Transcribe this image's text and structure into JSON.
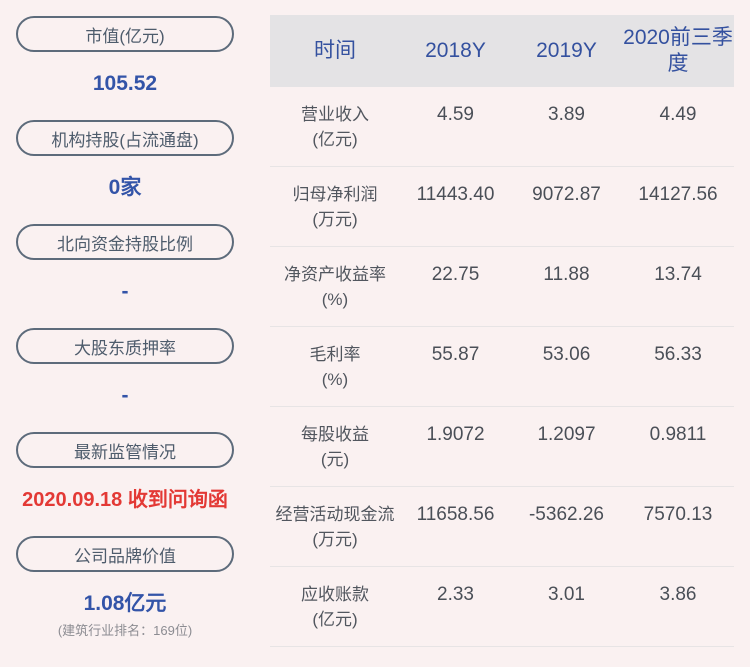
{
  "accent_colors": {
    "background": "#faf1f1",
    "pill_border": "#5d6b7b",
    "value_blue": "#3354a8",
    "alert_red": "#e33935",
    "header_bg": "#e4e3e5",
    "header_text": "#34519f"
  },
  "sidebar": {
    "stats": [
      {
        "label": "市值(亿元)",
        "value": "105.52"
      },
      {
        "label": "机构持股(占流通盘)",
        "value": "0家"
      },
      {
        "label": "北向资金持股比例",
        "value": "-"
      },
      {
        "label": "大股东质押率",
        "value": "-"
      },
      {
        "label": "最新监管情况",
        "value": "2020.09.18 收到问询函"
      },
      {
        "label": "公司品牌价值",
        "value": "1.08亿元",
        "subvalue": "(建筑行业排名：169位)"
      }
    ]
  },
  "table": {
    "columns": [
      "时间",
      "2018Y",
      "2019Y",
      "2020前三季度"
    ],
    "rows": [
      {
        "name": "营业收入",
        "unit": "(亿元)",
        "values": [
          "4.59",
          "3.89",
          "4.49"
        ]
      },
      {
        "name": "归母净利润",
        "unit": "(万元)",
        "values": [
          "11443.40",
          "9072.87",
          "14127.56"
        ]
      },
      {
        "name": "净资产收益率",
        "unit": "(%)",
        "values": [
          "22.75",
          "11.88",
          "13.74"
        ]
      },
      {
        "name": "毛利率",
        "unit": "(%)",
        "values": [
          "55.87",
          "53.06",
          "56.33"
        ]
      },
      {
        "name": "每股收益",
        "unit": "(元)",
        "values": [
          "1.9072",
          "1.2097",
          "0.9811"
        ]
      },
      {
        "name": "经营活动现金流",
        "unit": "(万元)",
        "values": [
          "11658.56",
          "-5362.26",
          "7570.13"
        ]
      },
      {
        "name": "应收账款",
        "unit": "(亿元)",
        "values": [
          "2.33",
          "3.01",
          "3.86"
        ]
      }
    ]
  },
  "chart_data": {
    "type": "table",
    "title": "",
    "categories": [
      "2018Y",
      "2019Y",
      "2020前三季度"
    ],
    "series": [
      {
        "name": "营业收入(亿元)",
        "values": [
          4.59,
          3.89,
          4.49
        ]
      },
      {
        "name": "归母净利润(万元)",
        "values": [
          11443.4,
          9072.87,
          14127.56
        ]
      },
      {
        "name": "净资产收益率(%)",
        "values": [
          22.75,
          11.88,
          13.74
        ]
      },
      {
        "name": "毛利率(%)",
        "values": [
          55.87,
          53.06,
          56.33
        ]
      },
      {
        "name": "每股收益(元)",
        "values": [
          1.9072,
          1.2097,
          0.9811
        ]
      },
      {
        "name": "经营活动现金流(万元)",
        "values": [
          11658.56,
          -5362.26,
          7570.13
        ]
      },
      {
        "name": "应收账款(亿元)",
        "values": [
          2.33,
          3.01,
          3.86
        ]
      }
    ]
  }
}
